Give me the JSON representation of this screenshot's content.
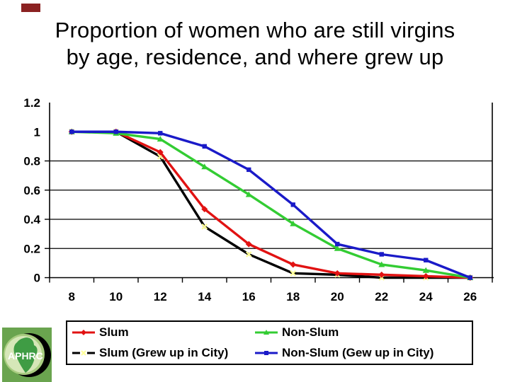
{
  "slide": {
    "title_line1": "Proportion of women who are still virgins",
    "title_line2": "by age, residence, and where grew up",
    "accent_bar_color": "#8b2222",
    "logo_text": "APHRC",
    "logo_colors": {
      "square": "#6aa44f",
      "ring": "#a8cc80",
      "globe": "#d6e7b8",
      "africa": "#3f9c44",
      "crescent": "#000000",
      "text": "#ffffff"
    }
  },
  "chart_data": {
    "type": "line",
    "title": "Proportion of women who are still virgins by age, residence, and where grew up",
    "xlabel": "",
    "ylabel": "",
    "x_tick_labels": [
      "8",
      "10",
      "12",
      "14",
      "16",
      "18",
      "20",
      "22",
      "24",
      "26"
    ],
    "categories": [
      8,
      10,
      12,
      14,
      16,
      18,
      20,
      22,
      24,
      26
    ],
    "ylim": [
      0,
      1.2
    ],
    "y_tick_labels": [
      "1.2",
      "1",
      "0.8",
      "0.6",
      "0.4",
      "0.2",
      "0"
    ],
    "y_tick_values": [
      1.2,
      1.0,
      0.8,
      0.6,
      0.4,
      0.2,
      0
    ],
    "grid": "horizontal",
    "legend_position": "bottom",
    "axis_color": "#000000",
    "series": [
      {
        "name": "Slum",
        "color": "#e11212",
        "marker": "diamond",
        "marker_color": "#e11212",
        "legend_dashed": false,
        "values": [
          1.0,
          1.0,
          0.86,
          0.47,
          0.23,
          0.09,
          0.03,
          0.02,
          0.01,
          0.0
        ]
      },
      {
        "name": "Slum (Grew up in City)",
        "color": "#000000",
        "marker": "x",
        "marker_color": "#ffff99",
        "legend_dashed": true,
        "values": [
          1.0,
          1.0,
          0.83,
          0.35,
          0.16,
          0.03,
          0.02,
          0.0,
          0.0,
          0.0
        ]
      },
      {
        "name": "Non-Slum",
        "color": "#33cc33",
        "marker": "triangle",
        "marker_color": "#33cc33",
        "legend_dashed": false,
        "values": [
          1.0,
          0.99,
          0.95,
          0.76,
          0.57,
          0.37,
          0.2,
          0.09,
          0.05,
          0.0
        ]
      },
      {
        "name": "Non-Slum (Gew up in City)",
        "color": "#1a1ac8",
        "marker": "square",
        "marker_color": "#1a1ac8",
        "legend_dashed": false,
        "values": [
          1.0,
          1.0,
          0.99,
          0.9,
          0.74,
          0.5,
          0.23,
          0.16,
          0.12,
          0.0
        ]
      }
    ]
  }
}
